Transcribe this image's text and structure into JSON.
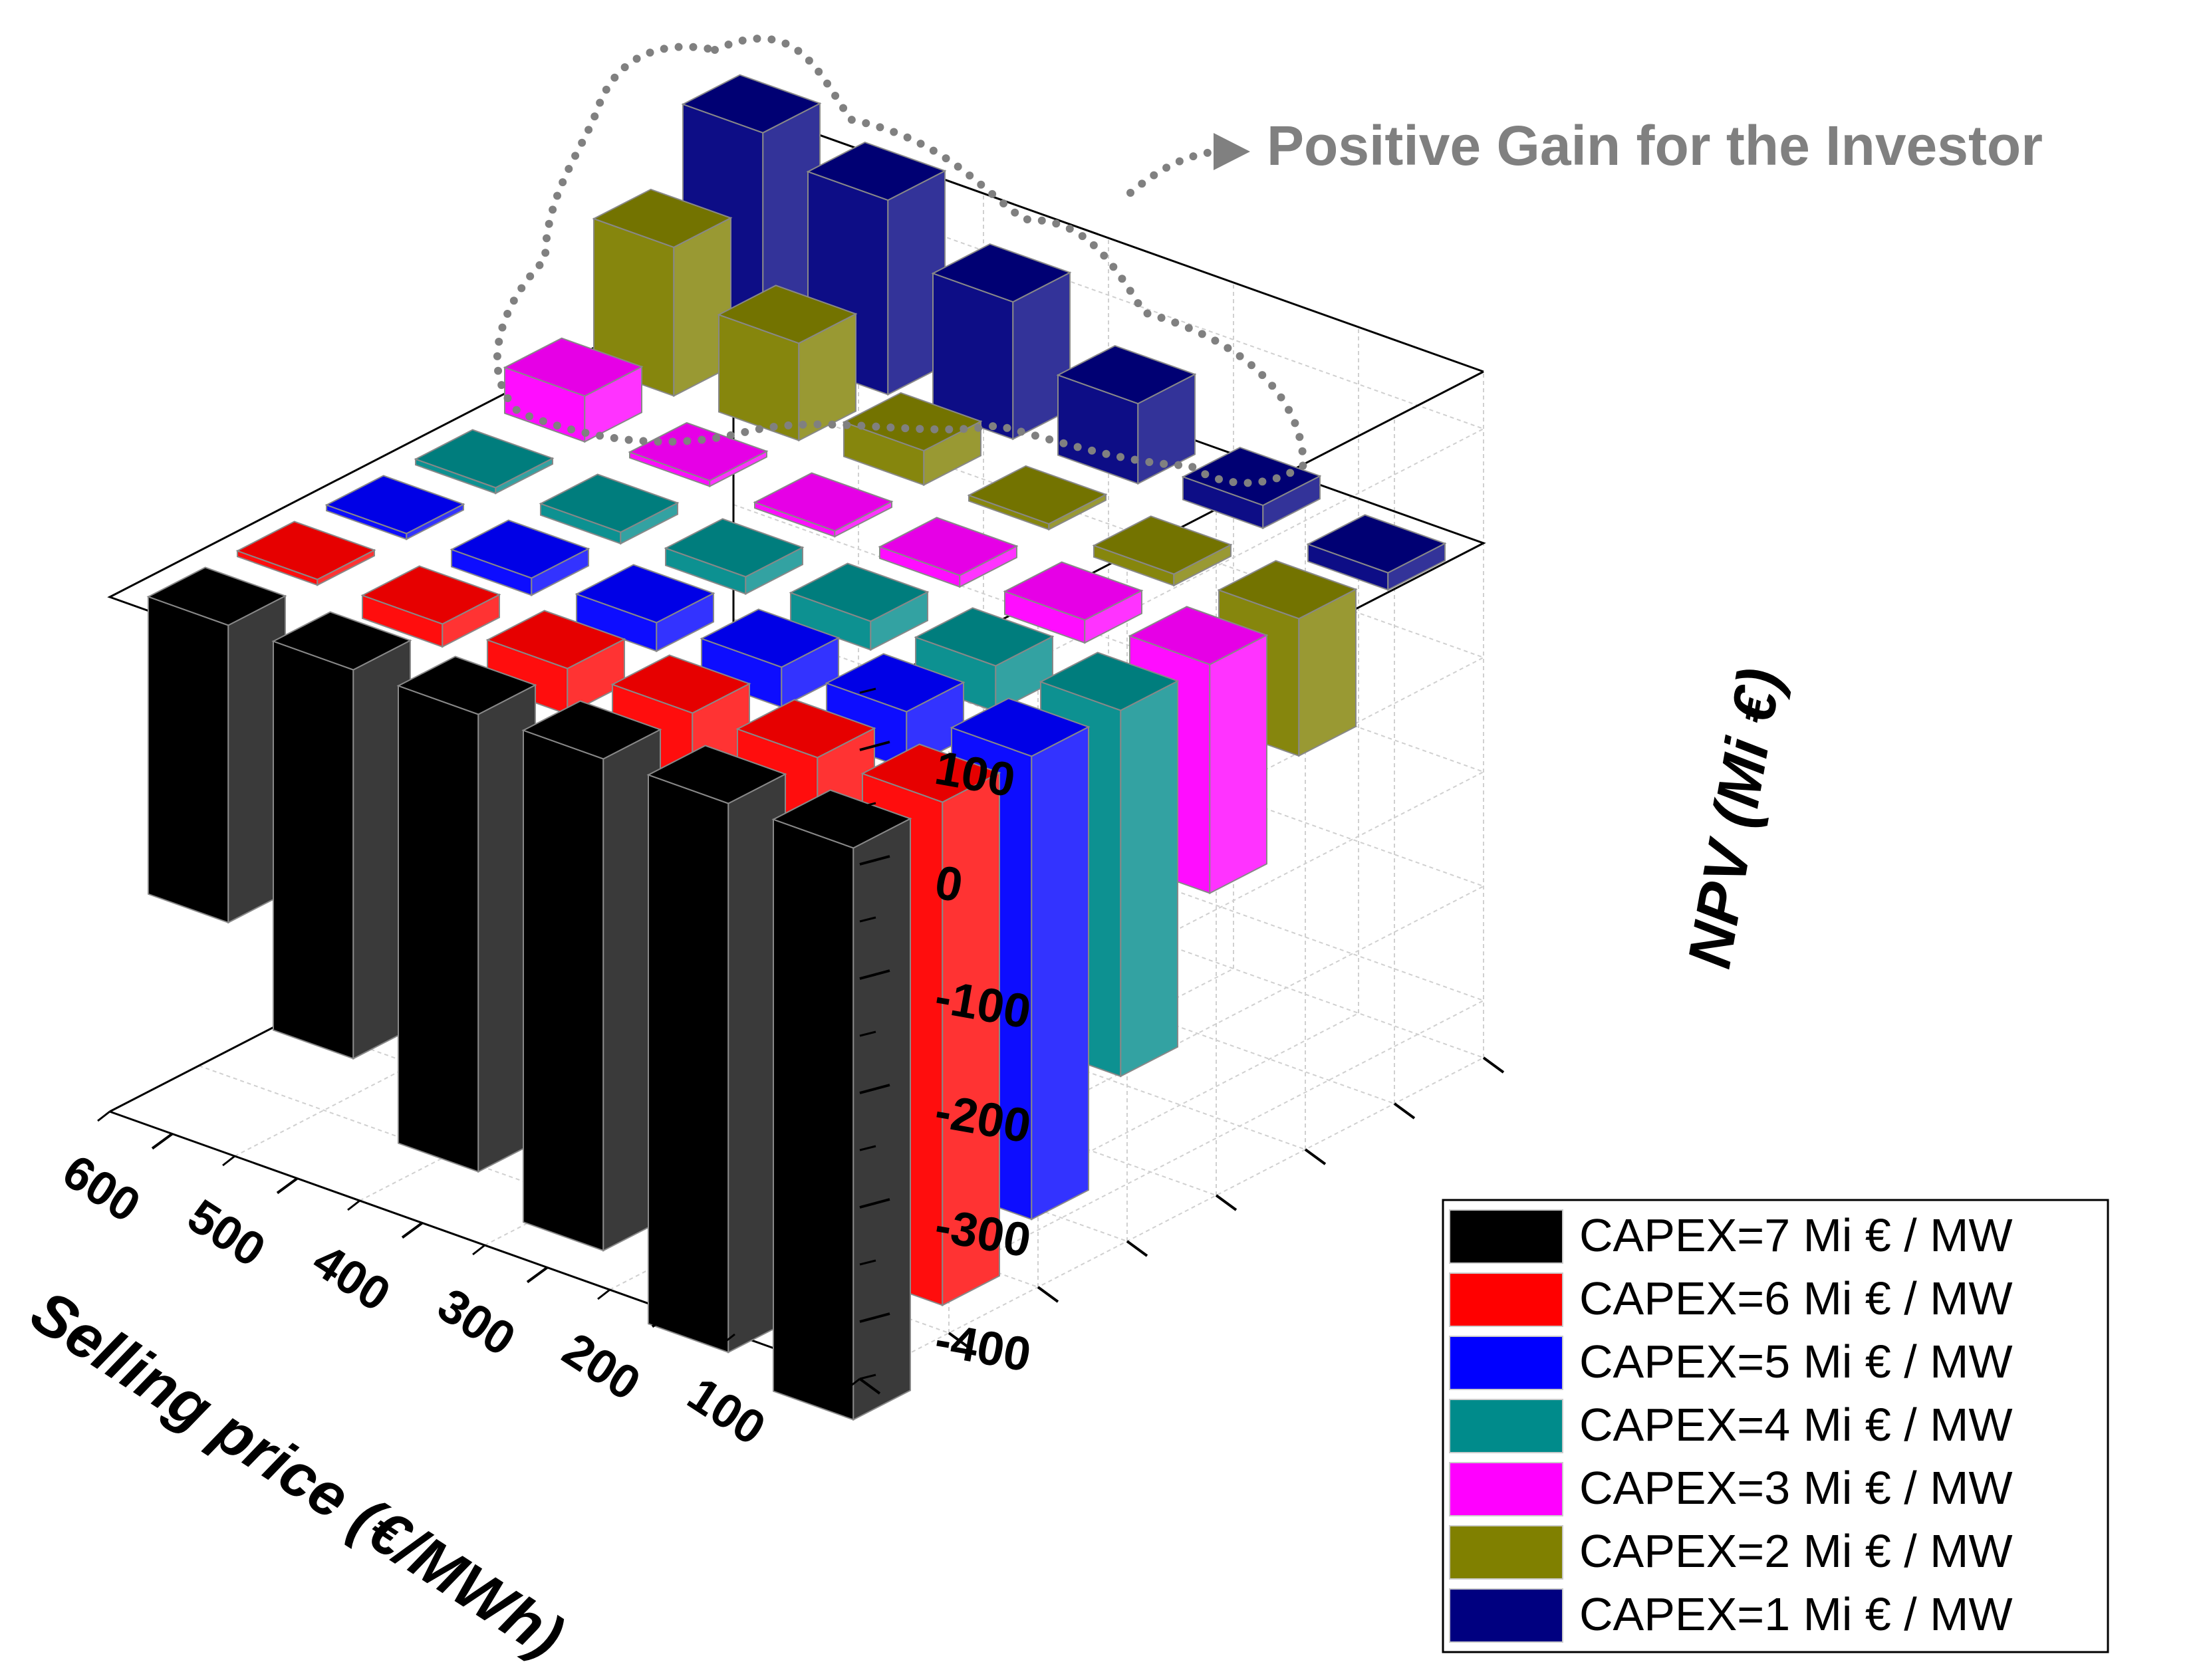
{
  "chart_data": {
    "type": "bar3d",
    "y_axis_label": "Selling price (€/MWh)",
    "z_axis_label": "NPV (Mi €)",
    "price_ticks": [
      "600",
      "500",
      "400",
      "300",
      "200",
      "100"
    ],
    "npv_ticks": [
      "100",
      "0",
      "-100",
      "-200",
      "-300",
      "-400"
    ],
    "zlim": [
      -450,
      150
    ],
    "prices": [
      600,
      500,
      400,
      300,
      200,
      100
    ],
    "series": [
      {
        "name": "CAPEX=7 Mi € / MW",
        "color": "#000000",
        "values": [
          -260,
          -340,
          -400,
          -430,
          -480,
          -500
        ]
      },
      {
        "name": "CAPEX=6 Mi € / MW",
        "color": "#ff0000",
        "values": [
          -5,
          -20,
          -40,
          -60,
          -80,
          -440
        ]
      },
      {
        "name": "CAPEX=5 Mi € / MW",
        "color": "#0000ff",
        "values": [
          -5,
          -15,
          -25,
          -35,
          -50,
          -405
        ]
      },
      {
        "name": "CAPEX=4 Mi € / MW",
        "color": "#008b8b",
        "values": [
          -5,
          -10,
          -15,
          -25,
          -40,
          -320
        ]
      },
      {
        "name": "CAPEX=3 Mi € / MW",
        "color": "#ff00ff",
        "values": [
          40,
          5,
          -5,
          -10,
          -20,
          -200
        ]
      },
      {
        "name": "CAPEX=2 Mi € / MW",
        "color": "#808000",
        "values": [
          130,
          85,
          30,
          5,
          -10,
          -120
        ]
      },
      {
        "name": "CAPEX=1 Mi € / MW",
        "color": "#000080",
        "values": [
          190,
          170,
          120,
          70,
          20,
          -15
        ]
      }
    ],
    "annotation": "Positive Gain for the Investor",
    "legend_position": "bottom-right"
  }
}
